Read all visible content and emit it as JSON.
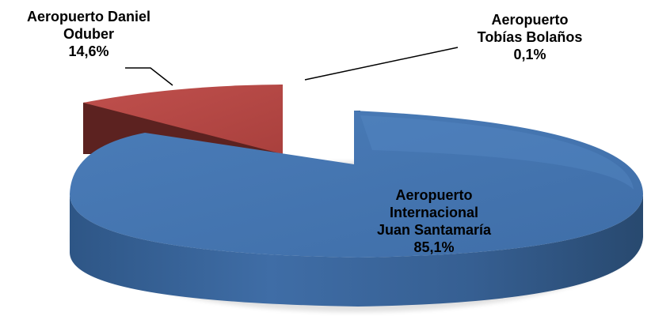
{
  "chart_data": {
    "type": "pie",
    "style": "3d-exploded",
    "slices": [
      {
        "label_lines": [
          "Aeropuerto Internacional",
          "Juan Santamaría"
        ],
        "name_lines": [
          "Aeropuerto",
          "Internacional",
          "Juan Santamaría"
        ],
        "value_label": "85,1%",
        "value": 85.1,
        "color": "#4F81BD"
      },
      {
        "name_lines": [
          "Aeropuerto  Daniel",
          "Oduber"
        ],
        "value_label": "14,6%",
        "value": 14.6,
        "color": "#C0504D"
      },
      {
        "name_lines": [
          "Aeropuerto",
          "Tobías Bolaños"
        ],
        "value_label": "0,1%",
        "value": 0.1,
        "color": "#9BBB59"
      }
    ]
  }
}
